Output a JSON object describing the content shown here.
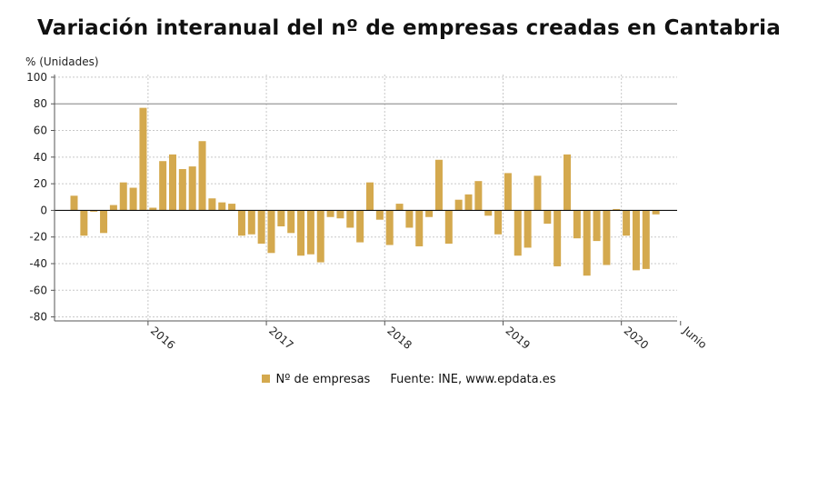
{
  "title": "Variación interanual del nº de empresas creadas en Cantabria",
  "chart_data": {
    "type": "bar",
    "title": "Variación interanual del nº de empresas creadas en Cantabria",
    "ylabel": "% (Unidades)",
    "xlabel": "",
    "ylim": [
      -83,
      102
    ],
    "yticks": [
      100,
      80,
      60,
      40,
      20,
      0,
      -20,
      -40,
      -60,
      -80
    ],
    "grid": true,
    "reference_line": 80,
    "bar_color": "#d4a94e",
    "x_tick_labels": [
      {
        "label": "2016",
        "index": 8
      },
      {
        "label": "2017",
        "index": 20
      },
      {
        "label": "2018",
        "index": 32
      },
      {
        "label": "2019",
        "index": 44
      },
      {
        "label": "2020",
        "index": 56
      },
      {
        "label": "Junio",
        "index": 61
      }
    ],
    "series": [
      {
        "name": "Nº de empresas",
        "values": [
          11,
          -19,
          -1,
          -17,
          4,
          21,
          17,
          77,
          2,
          37,
          42,
          31,
          33,
          52,
          9,
          6,
          5,
          -19,
          -18,
          -25,
          -32,
          -12,
          -17,
          -34,
          -33,
          -39,
          -5,
          -6,
          -13,
          -24,
          21,
          -7,
          -26,
          5,
          -13,
          -27,
          -5,
          38,
          -25,
          8,
          12,
          22,
          -4,
          -18,
          28,
          -34,
          -28,
          26,
          -10,
          -42,
          42,
          -21,
          -49,
          -23,
          -41,
          1,
          -19,
          -45,
          -44,
          -3
        ]
      }
    ]
  },
  "legend": {
    "series_name": "Nº de empresas",
    "source": "Fuente: INE, www.epdata.es"
  }
}
